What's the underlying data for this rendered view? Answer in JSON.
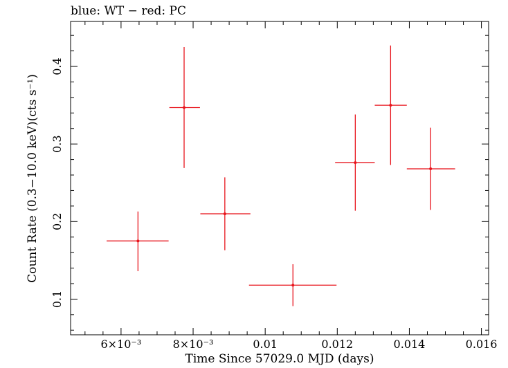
{
  "chart_data": {
    "type": "scatter",
    "title": "blue: WT − red: PC",
    "xlabel": "Time Since 57029.0 MJD (days)",
    "ylabel": "Count Rate (0.3−10.0 keV)(cts s⁻¹)",
    "xlim": [
      0.0046,
      0.0162
    ],
    "ylim": [
      0.054,
      0.458
    ],
    "xticks": [
      {
        "value": 0.006,
        "label": "6×10⁻³"
      },
      {
        "value": 0.008,
        "label": "8×10⁻³"
      },
      {
        "value": 0.01,
        "label": "0.01"
      },
      {
        "value": 0.012,
        "label": "0.012"
      },
      {
        "value": 0.014,
        "label": "0.014"
      },
      {
        "value": 0.016,
        "label": "0.016"
      }
    ],
    "yticks": [
      {
        "value": 0.1,
        "label": "0.1"
      },
      {
        "value": 0.2,
        "label": "0.2"
      },
      {
        "value": 0.3,
        "label": "0.3"
      },
      {
        "value": 0.4,
        "label": "0.4"
      }
    ],
    "grid": false,
    "series": [
      {
        "color": "#e8141c",
        "points": [
          {
            "x": 0.00647,
            "y": 0.175,
            "xerr": [
              0.00087,
              0.00085
            ],
            "yerr": [
              0.039,
              0.038
            ]
          },
          {
            "x": 0.00775,
            "y": 0.347,
            "xerr": [
              0.00041,
              0.00044
            ],
            "yerr": [
              0.078,
              0.078
            ]
          },
          {
            "x": 0.00888,
            "y": 0.21,
            "xerr": [
              0.00068,
              0.00071
            ],
            "yerr": [
              0.047,
              0.047
            ]
          },
          {
            "x": 0.01077,
            "y": 0.118,
            "xerr": [
              0.00122,
              0.00121
            ],
            "yerr": [
              0.027,
              0.027
            ]
          },
          {
            "x": 0.0125,
            "y": 0.276,
            "xerr": [
              0.00056,
              0.00054
            ],
            "yerr": [
              0.062,
              0.062
            ]
          },
          {
            "x": 0.01348,
            "y": 0.35,
            "xerr": [
              0.00044,
              0.00045
            ],
            "yerr": [
              0.077,
              0.077
            ]
          },
          {
            "x": 0.01459,
            "y": 0.268,
            "xerr": [
              0.00066,
              0.00068
            ],
            "yerr": [
              0.053,
              0.053
            ]
          }
        ]
      }
    ]
  }
}
